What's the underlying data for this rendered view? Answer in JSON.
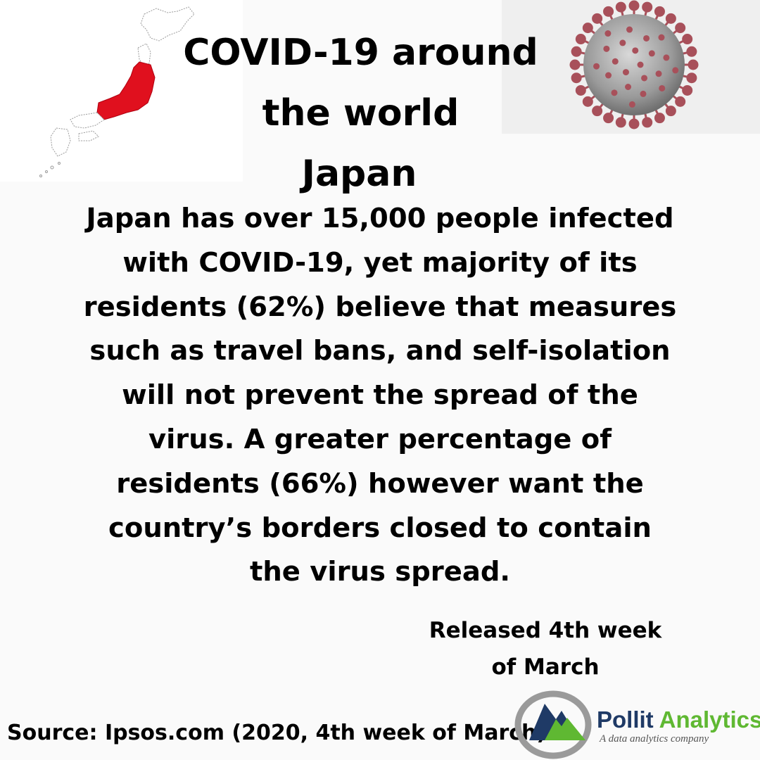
{
  "title": {
    "line1": "COVID-19 around",
    "line2": "the world",
    "line3": "Japan"
  },
  "body": {
    "lines": [
      "Japan has over 15,000 people infected",
      "with COVID-19, yet majority of its",
      "residents (62%) believe that measures",
      "such as travel bans, and self-isolation",
      "will not prevent the spread of the",
      "virus. A greater percentage of",
      "residents (66%) however want the",
      "country’s borders closed to contain",
      "the virus spread."
    ]
  },
  "released": {
    "line1": "Released 4th week",
    "line2": "of March"
  },
  "source": "Source: Ipsos.com (2020, 4th week of March).",
  "logo": {
    "name_part1": "Pollit",
    "name_part2": "Analytics",
    "tagline": "A data analytics company",
    "colors": {
      "navy": "#1f3a66",
      "green": "#5fb832",
      "silver": "#9a9a9a"
    }
  },
  "illustrations": {
    "map_icon": "japan-map-icon",
    "virus_icon": "coronavirus-icon",
    "highlight_color": "#e0101e",
    "virus_spike_color": "#a8505a"
  }
}
